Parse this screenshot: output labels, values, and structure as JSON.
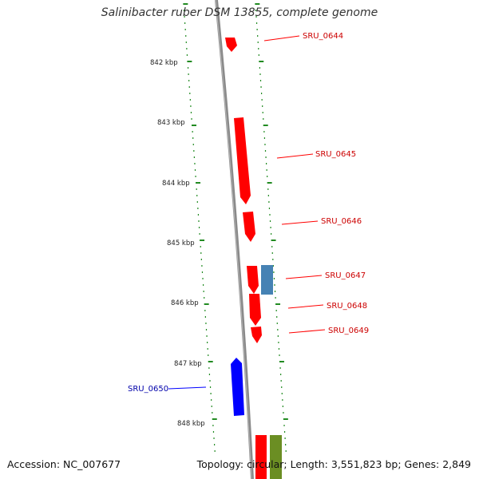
{
  "title": "Salinibacter ruber DSM 13855, complete genome",
  "accession": "Accession: NC_007677",
  "summary": "Topology: circular; Length: 3,551,823 bp; Genes: 2,849",
  "colors": {
    "backbone": "#8a8a8a",
    "tick": "#228b22",
    "forward_gene": "#ff0000",
    "reverse_gene": "#0000ff",
    "label_forward": "#cc0000",
    "label_reverse": "#0000aa",
    "steelblue_gene": "#4682b4",
    "olive_gene": "#6b8e23"
  },
  "ruler": [
    {
      "label": "842 kbp"
    },
    {
      "label": "843 kbp"
    },
    {
      "label": "844 kbp"
    },
    {
      "label": "845 kbp"
    },
    {
      "label": "846 kbp"
    },
    {
      "label": "847 kbp"
    },
    {
      "label": "848 kbp"
    }
  ],
  "genes": [
    {
      "label": "SRU_0644",
      "strand": "+"
    },
    {
      "label": "SRU_0645",
      "strand": "+"
    },
    {
      "label": "SRU_0646",
      "strand": "+"
    },
    {
      "label": "SRU_0647",
      "strand": "+"
    },
    {
      "label": "SRU_0648",
      "strand": "+"
    },
    {
      "label": "SRU_0649",
      "strand": "+"
    },
    {
      "label": "SRU_0650",
      "strand": "-"
    }
  ]
}
